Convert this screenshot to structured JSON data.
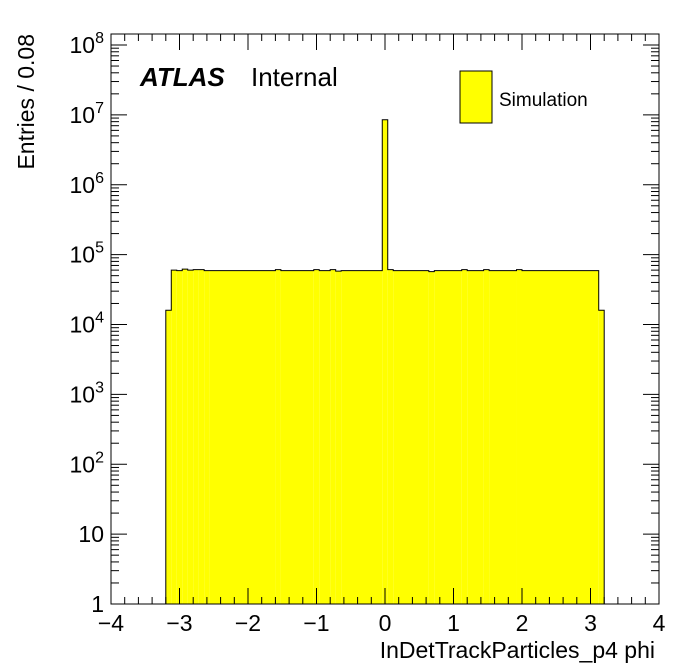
{
  "chart_data": {
    "type": "bar",
    "xlabel": "InDetTrackParticles_p4 phi",
    "ylabel": "Entries / 0.08",
    "xlim": [
      -4,
      4
    ],
    "ylim": [
      1,
      100000000
    ],
    "log_y": true,
    "bin_width": 0.08,
    "fill_color": "#ffff00",
    "edge_color": "#000000",
    "x_ticks": [
      "−4",
      "−3",
      "−2",
      "−1",
      "0",
      "1",
      "2",
      "3",
      "4"
    ],
    "y_ticks": [
      {
        "base": "1",
        "exp": ""
      },
      {
        "base": "10",
        "exp": ""
      },
      {
        "base": "10",
        "exp": "2"
      },
      {
        "base": "10",
        "exp": "3"
      },
      {
        "base": "10",
        "exp": "4"
      },
      {
        "base": "10",
        "exp": "5"
      },
      {
        "base": "10",
        "exp": "6"
      },
      {
        "base": "10",
        "exp": "7"
      },
      {
        "base": "10",
        "exp": "8"
      }
    ],
    "bins": [
      {
        "x0": -3.2,
        "x1": -3.12,
        "y": 16000
      },
      {
        "x0": -3.12,
        "x1": -3.04,
        "y": 60000
      },
      {
        "x0": -3.04,
        "x1": -2.96,
        "y": 59000
      },
      {
        "x0": -2.96,
        "x1": -2.88,
        "y": 62000
      },
      {
        "x0": -2.88,
        "x1": -2.8,
        "y": 60000
      },
      {
        "x0": -2.8,
        "x1": -2.72,
        "y": 61000
      },
      {
        "x0": -2.72,
        "x1": -2.64,
        "y": 61000
      },
      {
        "x0": -2.64,
        "x1": -2.56,
        "y": 59000
      },
      {
        "x0": -2.56,
        "x1": -1.6,
        "y": 59000
      },
      {
        "x0": -1.6,
        "x1": -1.52,
        "y": 61000
      },
      {
        "x0": -1.52,
        "x1": -1.04,
        "y": 59000
      },
      {
        "x0": -1.04,
        "x1": -0.96,
        "y": 61000
      },
      {
        "x0": -0.96,
        "x1": -0.8,
        "y": 59000
      },
      {
        "x0": -0.8,
        "x1": -0.72,
        "y": 61000
      },
      {
        "x0": -0.72,
        "x1": -0.64,
        "y": 58000
      },
      {
        "x0": -0.64,
        "x1": -0.04,
        "y": 59000
      },
      {
        "x0": -0.04,
        "x1": 0.04,
        "y": 8500000
      },
      {
        "x0": 0.04,
        "x1": 0.12,
        "y": 61000
      },
      {
        "x0": 0.12,
        "x1": 0.64,
        "y": 59000
      },
      {
        "x0": 0.64,
        "x1": 0.72,
        "y": 57000
      },
      {
        "x0": 0.72,
        "x1": 1.12,
        "y": 59000
      },
      {
        "x0": 1.12,
        "x1": 1.2,
        "y": 61000
      },
      {
        "x0": 1.2,
        "x1": 1.44,
        "y": 59000
      },
      {
        "x0": 1.44,
        "x1": 1.52,
        "y": 61000
      },
      {
        "x0": 1.52,
        "x1": 1.92,
        "y": 59000
      },
      {
        "x0": 1.92,
        "x1": 2.0,
        "y": 61000
      },
      {
        "x0": 2.0,
        "x1": 3.12,
        "y": 59000
      },
      {
        "x0": 3.12,
        "x1": 3.2,
        "y": 16000
      }
    ],
    "legend": {
      "entry": "Simulation",
      "position": "top-right"
    },
    "annotation": {
      "bold": "ATLAS",
      "text": "Internal"
    }
  }
}
